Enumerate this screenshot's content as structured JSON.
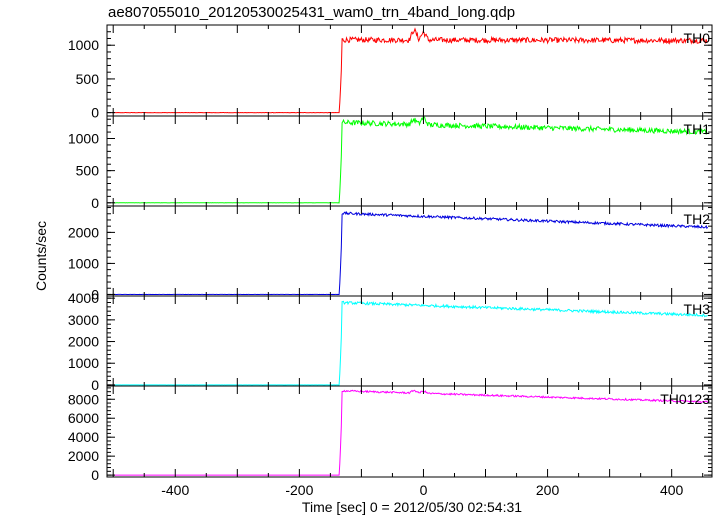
{
  "title": "ae807055010_20120530025431_wam0_trn_4band_long.qdp",
  "chart_data": {
    "type": "line",
    "xlabel": "Time [sec] 0 = 2012/05/30 02:54:31",
    "ylabel": "Counts/sec",
    "xlim": [
      -510,
      465
    ],
    "xticks": [
      -400,
      -200,
      0,
      200,
      400
    ],
    "onset_time": -135,
    "panels": [
      {
        "name": "TH0",
        "color": "#ff0000",
        "ylim": [
          -50,
          1300
        ],
        "yticks": [
          0,
          500,
          1000
        ],
        "pre_level": 0,
        "peak_level": 1080,
        "end_level": 1070,
        "noise": 40,
        "spikes": [
          {
            "x": -15,
            "height": 160
          },
          {
            "x": 0,
            "height": 120
          }
        ]
      },
      {
        "name": "TH1",
        "color": "#00ff00",
        "ylim": [
          -50,
          1350
        ],
        "yticks": [
          0,
          500,
          1000
        ],
        "pre_level": 0,
        "peak_level": 1250,
        "end_level": 1100,
        "noise": 40,
        "spikes": [
          {
            "x": -15,
            "height": 80
          },
          {
            "x": 0,
            "height": 120
          }
        ]
      },
      {
        "name": "TH2",
        "color": "#0000dd",
        "ylim": [
          -50,
          2850
        ],
        "yticks": [
          0,
          1000,
          2000
        ],
        "pre_level": 0,
        "peak_level": 2620,
        "end_level": 2160,
        "noise": 40,
        "spikes": []
      },
      {
        "name": "TH3",
        "color": "#00ffff",
        "ylim": [
          -50,
          4100
        ],
        "yticks": [
          0,
          1000,
          2000,
          3000,
          4000
        ],
        "pre_level": 0,
        "peak_level": 3800,
        "end_level": 3200,
        "noise": 60,
        "spikes": []
      },
      {
        "name": "TH0123",
        "color": "#ff00ff",
        "ylim": [
          -200,
          9400
        ],
        "yticks": [
          0,
          2000,
          4000,
          6000,
          8000
        ],
        "pre_level": 0,
        "peak_level": 8900,
        "end_level": 7700,
        "noise": 90,
        "spikes": [
          {
            "x": -15,
            "height": 300
          },
          {
            "x": 0,
            "height": 250
          }
        ]
      }
    ]
  }
}
